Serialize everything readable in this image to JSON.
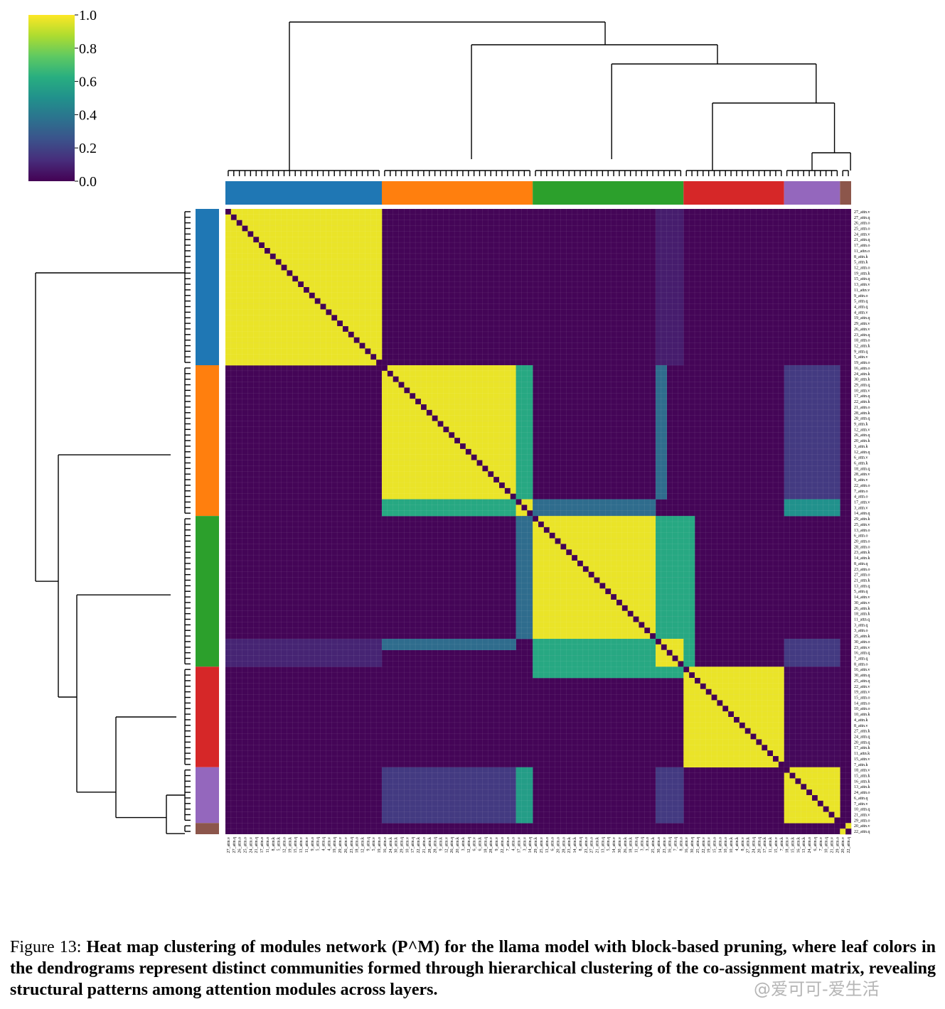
{
  "figure": {
    "label": "Figure 13:",
    "caption": "Heat map clustering of modules network (P^M) for the llama model with block-based pruning, where leaf colors in the dendrograms represent distinct communities formed through hierarchical clustering of the co-assignment matrix, revealing structural patterns among attention modules across layers.",
    "watermark": "@爱可可-爱生活"
  },
  "chart_data": {
    "type": "heatmap",
    "title": "",
    "colormap": "viridis",
    "colorbar": {
      "ticks": [
        "0.0",
        "0.2",
        "0.4",
        "0.6",
        "0.8",
        "1.0"
      ],
      "range": [
        0,
        1
      ]
    },
    "communities": [
      {
        "color": "#1f77b4",
        "size": 28
      },
      {
        "color": "#ff7f0e",
        "size": 27
      },
      {
        "color": "#2ca02c",
        "size": 27
      },
      {
        "color": "#d62728",
        "size": 18
      },
      {
        "color": "#9467bd",
        "size": 10
      },
      {
        "color": "#8c564b",
        "size": 2
      }
    ],
    "labels": [
      "27_attn.v",
      "27_attn.q",
      "26_attn.o",
      "25_attn.o",
      "24_attn.v",
      "21_attn.q",
      "17_attn.o",
      "11_attn.o",
      "8_attn.k",
      "5_attn.k",
      "12_attn.o",
      "19_attn.k",
      "15_attn.q",
      "13_attn.v",
      "11_attn.v",
      "9_attn.o",
      "5_attn.q",
      "4_attn.q",
      "4_attn.v",
      "19_attn.q",
      "29_attn.v",
      "26_attn.v",
      "23_attn.q",
      "18_attn.o",
      "12_attn.k",
      "9_attn.q",
      "5_attn.v",
      "19_attn.o",
      "16_attn.o",
      "24_attn.k",
      "30_attn.k",
      "29_attn.q",
      "10_attn.v",
      "17_attn.q",
      "22_attn.k",
      "21_attn.o",
      "28_attn.k",
      "28_attn.q",
      "9_attn.k",
      "12_attn.v",
      "26_attn.q",
      "20_attn.k",
      "3_attn.k",
      "12_attn.q",
      "6_attn.v",
      "6_attn.k",
      "18_attn.q",
      "28_attn.v",
      "9_attn.v",
      "22_attn.o",
      "7_attn.o",
      "4_attn.o",
      "17_attn.v",
      "3_attn.v",
      "14_attn.q",
      "29_attn.k",
      "25_attn.v",
      "13_attn.o",
      "6_attn.o",
      "20_attn.o",
      "28_attn.o",
      "23_attn.k",
      "14_attn.k",
      "8_attn.q",
      "23_attn.o",
      "27_attn.o",
      "21_attn.k",
      "13_attn.q",
      "5_attn.q",
      "14_attn.v",
      "30_attn.v",
      "26_attn.k",
      "18_attn.k",
      "11_attn.q",
      "3_attn.q",
      "3_attn.o",
      "25_attn.k",
      "30_attn.o",
      "23_attn.v",
      "16_attn.q",
      "7_attn.q",
      "8_attn.o",
      "16_attn.v",
      "30_attn.q",
      "25_attn.q",
      "22_attn.v",
      "19_attn.v",
      "15_attn.o",
      "14_attn.o",
      "10_attn.o",
      "10_attn.k",
      "4_attn.k",
      "8_attn.v",
      "27_attn.k",
      "24_attn.q",
      "20_attn.q",
      "17_attn.k",
      "11_attn.k",
      "15_attn.v",
      "7_attn.k",
      "18_attn.v",
      "15_attn.k",
      "16_attn.k",
      "13_attn.k",
      "24_attn.o",
      "6_attn.q",
      "7_attn.v",
      "10_attn.q",
      "21_attn.v",
      "29_attn.o",
      "20_attn.v",
      "22_attn.q"
    ],
    "blocks": [
      {
        "rows": [
          0,
          28
        ],
        "cols": [
          0,
          28
        ],
        "value": 0.97
      },
      {
        "rows": [
          28,
          52
        ],
        "cols": [
          28,
          52
        ],
        "value": 0.97
      },
      {
        "rows": [
          52,
          55
        ],
        "cols": [
          52,
          55
        ],
        "value": 0.97
      },
      {
        "rows": [
          52,
          55
        ],
        "cols": [
          28,
          52
        ],
        "value": 0.6
      },
      {
        "rows": [
          28,
          52
        ],
        "cols": [
          52,
          55
        ],
        "value": 0.6
      },
      {
        "rows": [
          55,
          77
        ],
        "cols": [
          55,
          77
        ],
        "value": 0.97
      },
      {
        "rows": [
          77,
          82
        ],
        "cols": [
          77,
          82
        ],
        "value": 0.97
      },
      {
        "rows": [
          55,
          77
        ],
        "cols": [
          77,
          82
        ],
        "value": 0.6
      },
      {
        "rows": [
          77,
          82
        ],
        "cols": [
          55,
          77
        ],
        "value": 0.6
      },
      {
        "rows": [
          82,
          100
        ],
        "cols": [
          82,
          100
        ],
        "value": 0.97
      },
      {
        "rows": [
          100,
          110
        ],
        "cols": [
          100,
          110
        ],
        "value": 0.97
      },
      {
        "rows": [
          110,
          112
        ],
        "cols": [
          110,
          112
        ],
        "value": 0.97
      },
      {
        "rows": [
          100,
          110
        ],
        "cols": [
          28,
          52
        ],
        "value": 0.17
      },
      {
        "rows": [
          28,
          52
        ],
        "cols": [
          100,
          110
        ],
        "value": 0.17
      },
      {
        "rows": [
          100,
          110
        ],
        "cols": [
          52,
          55
        ],
        "value": 0.55
      },
      {
        "rows": [
          52,
          55
        ],
        "cols": [
          100,
          110
        ],
        "value": 0.5
      },
      {
        "rows": [
          100,
          110
        ],
        "cols": [
          77,
          82
        ],
        "value": 0.17
      },
      {
        "rows": [
          77,
          82
        ],
        "cols": [
          100,
          110
        ],
        "value": 0.17
      },
      {
        "rows": [
          52,
          55
        ],
        "cols": [
          55,
          77
        ],
        "value": 0.35
      },
      {
        "rows": [
          55,
          77
        ],
        "cols": [
          52,
          55
        ],
        "value": 0.35
      },
      {
        "rows": [
          77,
          82
        ],
        "cols": [
          0,
          28
        ],
        "value": 0.1
      },
      {
        "rows": [
          0,
          28
        ],
        "cols": [
          77,
          82
        ],
        "value": 0.08
      },
      {
        "rows": [
          82,
          84
        ],
        "cols": [
          55,
          82
        ],
        "value": 0.6
      },
      {
        "rows": [
          55,
          82
        ],
        "cols": [
          82,
          84
        ],
        "value": 0.6
      },
      {
        "rows": [
          28,
          52
        ],
        "cols": [
          77,
          79
        ],
        "value": 0.35
      },
      {
        "rows": [
          77,
          79
        ],
        "cols": [
          28,
          52
        ],
        "value": 0.35
      },
      {
        "rows": [
          82,
          100
        ],
        "cols": [
          100,
          110
        ],
        "value": 0.02
      }
    ],
    "diagonal_value": 0.0,
    "background_value": 0.01
  }
}
